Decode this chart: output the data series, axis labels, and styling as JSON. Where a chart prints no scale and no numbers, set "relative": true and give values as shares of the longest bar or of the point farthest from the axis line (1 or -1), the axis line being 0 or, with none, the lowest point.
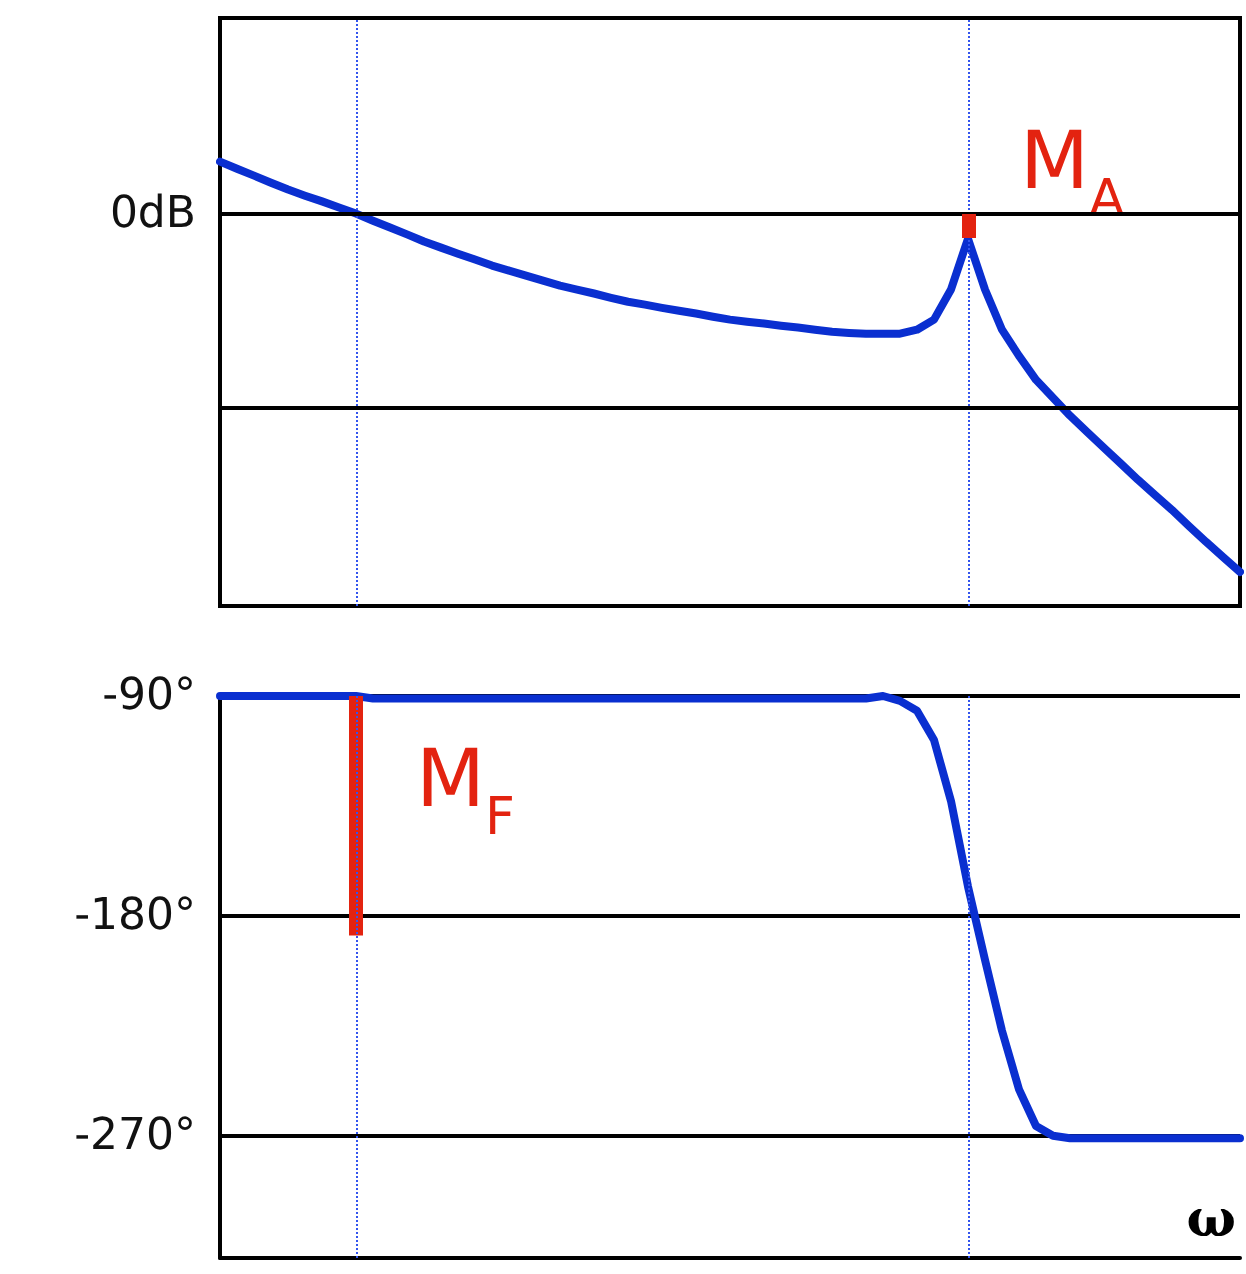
{
  "chart_data": [
    {
      "type": "line",
      "relative": true,
      "tick_labels": false,
      "categories": [
        null,
        null,
        null,
        null,
        null,
        null,
        null,
        null,
        null,
        null,
        null,
        null,
        null,
        null,
        null,
        null,
        null,
        null,
        null,
        null,
        null,
        null,
        null,
        null,
        null,
        null,
        null,
        null,
        null,
        null,
        null,
        null,
        null,
        null,
        null,
        null,
        null,
        null,
        null,
        null,
        null,
        null,
        null,
        null,
        null,
        null,
        null,
        null,
        null,
        null,
        null,
        null,
        null,
        null,
        null,
        null,
        null,
        null,
        null,
        null,
        null
      ],
      "series": [
        {
          "color": "#0a2fd0",
          "values": [
            0.145,
            0.125,
            0.106,
            0.086,
            0.067,
            0.05,
            0.034,
            0.017,
            0,
            -0.02,
            -0.039,
            -0.058,
            -0.078,
            -0.095,
            -0.112,
            -0.128,
            -0.145,
            -0.159,
            -0.173,
            -0.187,
            -0.201,
            -0.212,
            -0.223,
            -0.235,
            -0.246,
            -0.254,
            -0.263,
            -0.271,
            -0.279,
            -0.288,
            -0.296,
            -0.302,
            -0.307,
            -0.313,
            -0.318,
            -0.324,
            -0.33,
            -0.333,
            -0.335,
            -0.335,
            -0.335,
            -0.324,
            -0.296,
            -0.212,
            -0.07,
            -0.212,
            -0.324,
            -0.397,
            -0.464,
            -0.514,
            -0.564,
            -0.609,
            -0.654,
            -0.698,
            -0.743,
            -0.785,
            -0.827,
            -0.872,
            -0.916,
            -0.958,
            -1
          ]
        }
      ],
      "ref_lines": [
        {
          "axis": "y",
          "value": -0.542,
          "color": "#000000",
          "line_style": "solid"
        }
      ],
      "annotations": [
        "0dB",
        "M$_{A}$"
      ]
    },
    {
      "type": "line",
      "tick_labels": "y",
      "grid": "y",
      "xlabel": "ω",
      "categories": [
        null,
        null,
        null,
        null,
        null,
        null,
        null,
        null,
        null,
        null,
        null,
        null,
        null,
        null,
        null,
        null,
        null,
        null,
        null,
        null,
        null,
        null,
        null,
        null,
        null,
        null,
        null,
        null,
        null,
        null,
        null,
        null,
        null,
        null,
        null,
        null,
        null,
        null,
        null,
        null,
        null,
        null,
        null,
        null,
        null,
        null,
        null,
        null,
        null,
        null,
        null,
        null,
        null,
        null,
        null,
        null,
        null,
        null,
        null,
        null,
        null
      ],
      "ylim": [
        -320,
        -90
      ],
      "yticks": [
        {
          "value": -90,
          "label": "-90°"
        },
        {
          "value": -180,
          "label": "-180°"
        },
        {
          "value": -270,
          "label": "-270°"
        }
      ],
      "series": [
        {
          "color": "#0a2fd0",
          "values": [
            -90,
            -90,
            -90,
            -90,
            -90,
            -90,
            -90,
            -90,
            -90,
            -91,
            -91,
            -91,
            -91,
            -91,
            -91,
            -91,
            -91,
            -91,
            -91,
            -91,
            -91,
            -91,
            -91,
            -91,
            -91,
            -91,
            -91,
            -91,
            -91,
            -91,
            -91,
            -91,
            -91,
            -91,
            -91,
            -91,
            -91,
            -91,
            -91,
            -90,
            -92,
            -96,
            -108,
            -133,
            -168,
            -198,
            -227,
            -251,
            -266,
            -270,
            -271,
            -271,
            -271,
            -271,
            -271,
            -271,
            -271,
            -271,
            -271,
            -271,
            -271
          ]
        },
        {
          "type": "bar",
          "color": "#e32310",
          "base": [
            null,
            null,
            null,
            null,
            null,
            null,
            null,
            null,
            -188,
            null,
            null,
            null,
            null,
            null,
            null,
            null,
            null,
            null,
            null,
            null,
            null,
            null,
            null,
            null,
            null,
            null,
            null,
            null,
            null,
            null,
            null,
            null,
            null,
            null,
            null,
            null,
            null,
            null,
            null,
            null,
            null,
            null,
            null,
            null,
            null,
            null,
            null,
            null,
            null,
            null,
            null,
            null,
            null,
            null,
            null,
            null,
            null,
            null,
            null,
            null,
            null
          ],
          "values": [
            null,
            null,
            null,
            null,
            null,
            null,
            null,
            null,
            98,
            null,
            null,
            null,
            null,
            null,
            null,
            null,
            null,
            null,
            null,
            null,
            null,
            null,
            null,
            null,
            null,
            null,
            null,
            null,
            null,
            null,
            null,
            null,
            null,
            null,
            null,
            null,
            null,
            null,
            null,
            null,
            null,
            null,
            null,
            null,
            null,
            null,
            null,
            null,
            null,
            null,
            null,
            null,
            null,
            null,
            null,
            null,
            null,
            null,
            null,
            null,
            null
          ]
        }
      ],
      "annotations": [
        "M$_{F}$"
      ]
    }
  ]
}
